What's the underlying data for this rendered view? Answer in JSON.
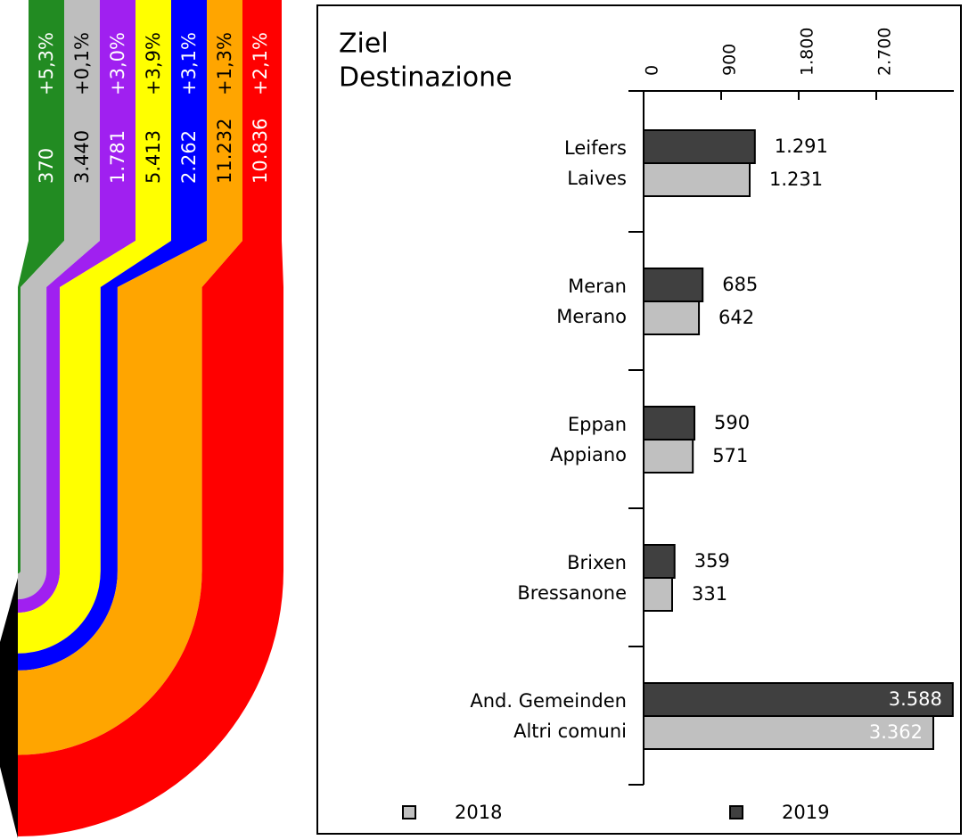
{
  "flows": {
    "values": [
      370,
      3440,
      1781,
      5413,
      2262,
      11232,
      10836
    ],
    "value_labels": [
      "370",
      "3.440",
      "1.781",
      "5.413",
      "2.262",
      "11.232",
      "10.836"
    ],
    "changes": [
      "+5,3%",
      "+0,1%",
      "+3,0%",
      "+3,9%",
      "+3,1%",
      "+1,3%",
      "+2,1%"
    ],
    "colors": [
      "#228b22",
      "#bebebe",
      "#a020f0",
      "#ffff00",
      "#0000ff",
      "#ffa500",
      "#ff0000"
    ],
    "text_colors": [
      "#ffffff",
      "#000000",
      "#ffffff",
      "#000000",
      "#ffffff",
      "#000000",
      "#ffffff"
    ]
  },
  "chart_data": {
    "type": "barh",
    "title": [
      "Ziel",
      "Destinazione"
    ],
    "categories": [
      [
        "Leifers",
        "Laives"
      ],
      [
        "Meran",
        "Merano"
      ],
      [
        "Eppan",
        "Appiano"
      ],
      [
        "Brixen",
        "Bressanone"
      ],
      [
        "And. Gemeinden",
        "Altri comuni"
      ]
    ],
    "series": [
      {
        "name": "2019",
        "color": "#404040",
        "values": [
          1291,
          685,
          590,
          359,
          3588
        ],
        "value_labels": [
          "1.291",
          "685",
          "590",
          "359",
          "3.588"
        ]
      },
      {
        "name": "2018",
        "color": "#c0c0c0",
        "values": [
          1231,
          642,
          571,
          331,
          3362
        ],
        "value_labels": [
          "1.231",
          "642",
          "571",
          "331",
          "3.362"
        ]
      }
    ],
    "xlim": [
      0,
      3600
    ],
    "xticks": [
      0,
      900,
      {
        "value": 1800,
        "label": "1.800"
      },
      {
        "value": 2700,
        "label": "2.700"
      }
    ]
  }
}
